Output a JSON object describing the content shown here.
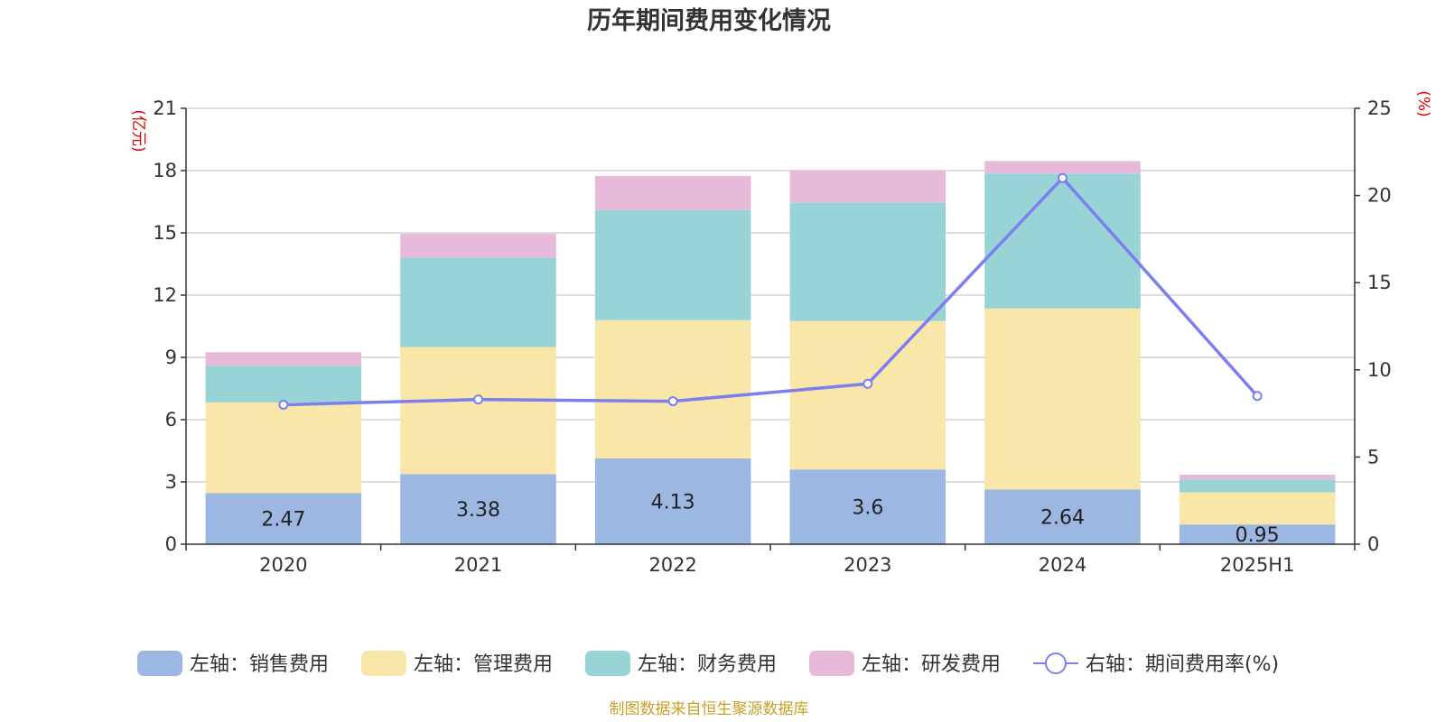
{
  "chart_data": {
    "type": "bar",
    "stacked": true,
    "title": "历年期间费用变化情况",
    "categories": [
      "2020",
      "2021",
      "2022",
      "2023",
      "2024",
      "2025H1"
    ],
    "left_axis": {
      "unit": "(亿元)",
      "min": 0,
      "max": 21,
      "ticks": [
        0,
        3,
        6,
        9,
        12,
        15,
        18,
        21
      ]
    },
    "right_axis": {
      "unit": "(%)",
      "min": 0,
      "max": 25,
      "ticks": [
        0,
        5,
        10,
        15,
        20,
        25
      ]
    },
    "series": [
      {
        "name": "左轴：销售费用",
        "type": "bar",
        "axis": "left",
        "color": "#9bb7e2",
        "values": [
          2.47,
          3.38,
          4.13,
          3.6,
          2.64,
          0.95
        ],
        "labels": [
          "2.47",
          "3.38",
          "4.13",
          "3.6",
          "2.64",
          "0.95"
        ]
      },
      {
        "name": "左轴：管理费用",
        "type": "bar",
        "axis": "left",
        "color": "#f8e7a9",
        "values": [
          4.36,
          6.12,
          6.66,
          7.15,
          8.72,
          1.55
        ]
      },
      {
        "name": "左轴：财务费用",
        "type": "bar",
        "axis": "left",
        "color": "#98d4d5",
        "values": [
          1.77,
          4.3,
          5.3,
          5.7,
          6.5,
          0.62
        ]
      },
      {
        "name": "左轴：研发费用",
        "type": "bar",
        "axis": "left",
        "color": "#e8bad9",
        "values": [
          0.65,
          1.15,
          1.65,
          1.55,
          0.6,
          0.23
        ]
      },
      {
        "name": "右轴：期间费用率(%)",
        "type": "line",
        "axis": "right",
        "color": "#7b7ff0",
        "values": [
          8.0,
          8.3,
          8.2,
          9.2,
          21.0,
          8.5
        ]
      }
    ],
    "grid": true,
    "legend_position": "bottom"
  },
  "footer": {
    "source": "制图数据来自恒生聚源数据库"
  }
}
